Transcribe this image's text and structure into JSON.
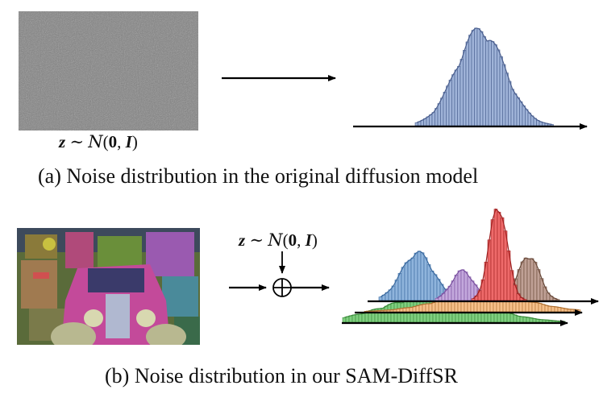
{
  "panel_a": {
    "formula": {
      "var": "z",
      "tilde": "∼",
      "dist": "N",
      "args_open": "(",
      "zero": "0",
      "comma": ",",
      "ident": "I",
      "args_close": ")"
    },
    "caption": "(a) Noise distribution in the original diffusion model"
  },
  "panel_b": {
    "formula": {
      "var": "z",
      "tilde": "∼",
      "dist": "N",
      "args_open": "(",
      "zero": "0",
      "comma": ",",
      "ident": "I",
      "args_close": ")"
    },
    "caption": "(b) Noise distribution in our SAM-DiffSR"
  },
  "colors": {
    "noise_gray": "#7d7d7d",
    "hist_blue": "#9fb3d8",
    "hist_blue_edge": "#4a5f8f",
    "hist_b_blue": "#8fb4dc",
    "hist_b_purple": "#c3a8dc",
    "hist_b_red": "#ee6a6a",
    "hist_b_brown": "#bfa095",
    "hist_b_orange": "#f6c08a",
    "hist_b_green": "#7fcf7f"
  }
}
